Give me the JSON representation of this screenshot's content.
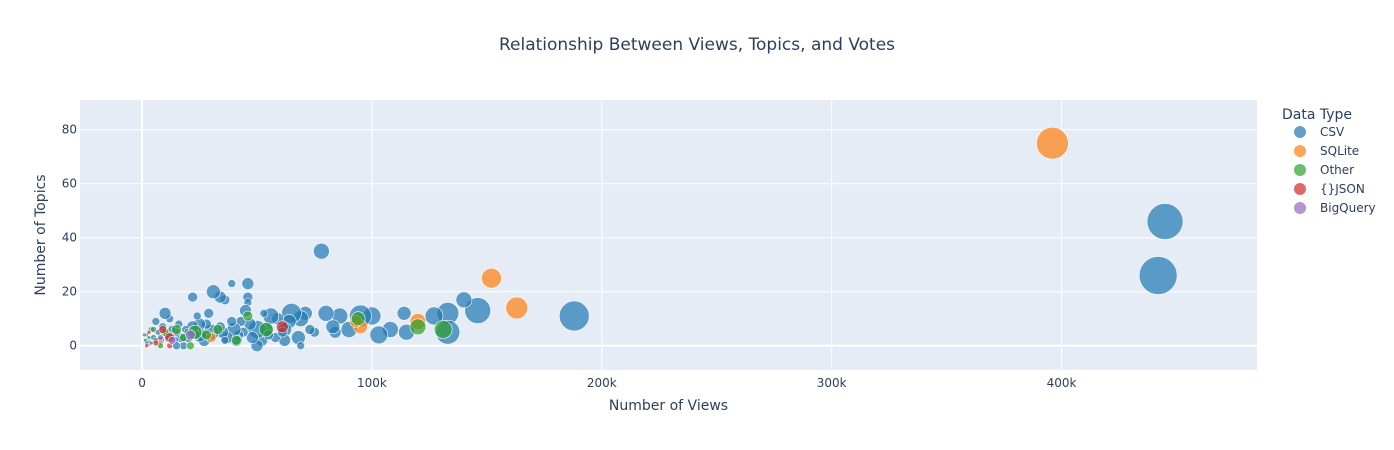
{
  "chart_data": {
    "type": "scatter",
    "title": "Relationship Between Views, Topics, and Votes",
    "xlabel": "Number of Views",
    "ylabel": "Number of Topics",
    "xlim": [
      -27000,
      485000
    ],
    "ylim": [
      -9,
      91
    ],
    "x_ticks": [
      0,
      100000,
      200000,
      300000,
      400000
    ],
    "x_tick_labels": [
      "0",
      "100k",
      "200k",
      "300k",
      "400k"
    ],
    "y_ticks": [
      0,
      20,
      40,
      60,
      80
    ],
    "y_tick_labels": [
      "0",
      "20",
      "40",
      "60",
      "80"
    ],
    "grid": true,
    "legend_title": "Data Type",
    "legend_position": "right",
    "series": [
      {
        "name": "CSV",
        "color": "#1f77b4",
        "points": [
          [
            445000,
            46,
            18
          ],
          [
            442000,
            26,
            19
          ],
          [
            188000,
            11,
            15
          ],
          [
            146000,
            13,
            13
          ],
          [
            140000,
            17,
            8
          ],
          [
            133000,
            12,
            11
          ],
          [
            133000,
            5,
            12
          ],
          [
            127000,
            11,
            9
          ],
          [
            115000,
            5,
            8
          ],
          [
            114000,
            12,
            7
          ],
          [
            108000,
            6,
            8
          ],
          [
            103000,
            4,
            9
          ],
          [
            100000,
            11,
            9
          ],
          [
            95000,
            11,
            11
          ],
          [
            90000,
            6,
            8
          ],
          [
            86000,
            11,
            8
          ],
          [
            84000,
            5,
            6
          ],
          [
            83000,
            7,
            7
          ],
          [
            80000,
            12,
            8
          ],
          [
            78000,
            35,
            8
          ],
          [
            75000,
            5,
            5
          ],
          [
            71000,
            12,
            7
          ],
          [
            69000,
            10,
            8
          ],
          [
            68000,
            3,
            7
          ],
          [
            69000,
            0,
            4
          ],
          [
            65000,
            12,
            10
          ],
          [
            64000,
            9,
            7
          ],
          [
            62000,
            6,
            7
          ],
          [
            62000,
            2,
            6
          ],
          [
            59000,
            10,
            6
          ],
          [
            58000,
            3,
            5
          ],
          [
            56000,
            11,
            8
          ],
          [
            54000,
            6,
            7
          ],
          [
            53000,
            12,
            4
          ],
          [
            52000,
            2,
            6
          ],
          [
            50000,
            0,
            6
          ],
          [
            50000,
            6,
            9
          ],
          [
            48000,
            3,
            6
          ],
          [
            47000,
            8,
            6
          ],
          [
            46000,
            18,
            5
          ],
          [
            46000,
            23,
            6
          ],
          [
            46000,
            16,
            4
          ],
          [
            45000,
            13,
            6
          ],
          [
            44000,
            5,
            5
          ],
          [
            43000,
            9,
            5
          ],
          [
            42000,
            4,
            5
          ],
          [
            41000,
            2,
            6
          ],
          [
            40000,
            6,
            7
          ],
          [
            39000,
            23,
            4
          ],
          [
            39000,
            9,
            5
          ],
          [
            37000,
            3,
            6
          ],
          [
            36000,
            17,
            5
          ],
          [
            35000,
            5,
            6
          ],
          [
            34000,
            7,
            5
          ],
          [
            34000,
            18,
            6
          ],
          [
            31000,
            20,
            7
          ],
          [
            30000,
            5,
            8
          ],
          [
            29000,
            12,
            5
          ],
          [
            28000,
            8,
            5
          ],
          [
            27000,
            2,
            6
          ],
          [
            25000,
            4,
            7
          ],
          [
            25000,
            8,
            6
          ],
          [
            24000,
            11,
            4
          ],
          [
            23000,
            4,
            5
          ],
          [
            22000,
            7,
            6
          ],
          [
            22000,
            18,
            5
          ],
          [
            20000,
            3,
            5
          ],
          [
            19000,
            6,
            4
          ],
          [
            18000,
            0,
            4
          ],
          [
            17000,
            3,
            5
          ],
          [
            16000,
            8,
            4
          ],
          [
            15000,
            5,
            4
          ],
          [
            14000,
            2,
            4
          ],
          [
            13000,
            6,
            4
          ],
          [
            12000,
            10,
            4
          ],
          [
            11000,
            4,
            4
          ],
          [
            10000,
            12,
            6
          ],
          [
            9000,
            7,
            4
          ],
          [
            8000,
            2,
            4
          ],
          [
            7000,
            5,
            3
          ],
          [
            6000,
            9,
            4
          ],
          [
            5000,
            3,
            3
          ],
          [
            4000,
            6,
            3
          ],
          [
            3000,
            1,
            3
          ],
          [
            2000,
            4,
            2
          ],
          [
            1500,
            2,
            2
          ],
          [
            15000,
            0,
            4
          ],
          [
            20000,
            5,
            4
          ],
          [
            36000,
            2,
            4
          ],
          [
            55000,
            4,
            5
          ],
          [
            61000,
            5,
            5
          ],
          [
            73000,
            6,
            5
          ]
        ]
      },
      {
        "name": "SQLite",
        "color": "#ff7f0e",
        "points": [
          [
            396000,
            75,
            16
          ],
          [
            163000,
            14,
            11
          ],
          [
            152000,
            25,
            10
          ],
          [
            120000,
            9,
            8
          ],
          [
            95000,
            7,
            7
          ],
          [
            93000,
            9,
            6
          ],
          [
            30000,
            3,
            5
          ],
          [
            8000,
            1,
            3
          ]
        ]
      },
      {
        "name": "Other",
        "color": "#2ca02c",
        "points": [
          [
            131000,
            6,
            9
          ],
          [
            120000,
            7,
            8
          ],
          [
            94000,
            10,
            7
          ],
          [
            54000,
            6,
            7
          ],
          [
            46000,
            11,
            5
          ],
          [
            41000,
            2,
            5
          ],
          [
            33000,
            6,
            5
          ],
          [
            28000,
            4,
            5
          ],
          [
            23000,
            5,
            7
          ],
          [
            21000,
            0,
            4
          ],
          [
            18000,
            3,
            4
          ],
          [
            15000,
            6,
            5
          ],
          [
            12000,
            3,
            4
          ],
          [
            10000,
            5,
            4
          ],
          [
            8000,
            0,
            3
          ],
          [
            6000,
            2,
            3
          ],
          [
            5000,
            6,
            3
          ],
          [
            3000,
            3,
            2
          ],
          [
            2000,
            1,
            2
          ],
          [
            1000,
            4,
            2
          ]
        ]
      },
      {
        "name": "{}JSON",
        "color": "#d62728",
        "points": [
          [
            61000,
            7,
            6
          ],
          [
            12000,
            3,
            5
          ],
          [
            9000,
            6,
            4
          ],
          [
            12000,
            0,
            3
          ],
          [
            6000,
            1,
            3
          ],
          [
            3000,
            5,
            2
          ],
          [
            2000,
            0,
            2
          ]
        ]
      },
      {
        "name": "BigQuery",
        "color": "#9467bd",
        "points": [
          [
            21000,
            4,
            5
          ],
          [
            13000,
            2,
            4
          ],
          [
            8000,
            3,
            3
          ],
          [
            4000,
            1,
            2
          ]
        ]
      }
    ]
  }
}
